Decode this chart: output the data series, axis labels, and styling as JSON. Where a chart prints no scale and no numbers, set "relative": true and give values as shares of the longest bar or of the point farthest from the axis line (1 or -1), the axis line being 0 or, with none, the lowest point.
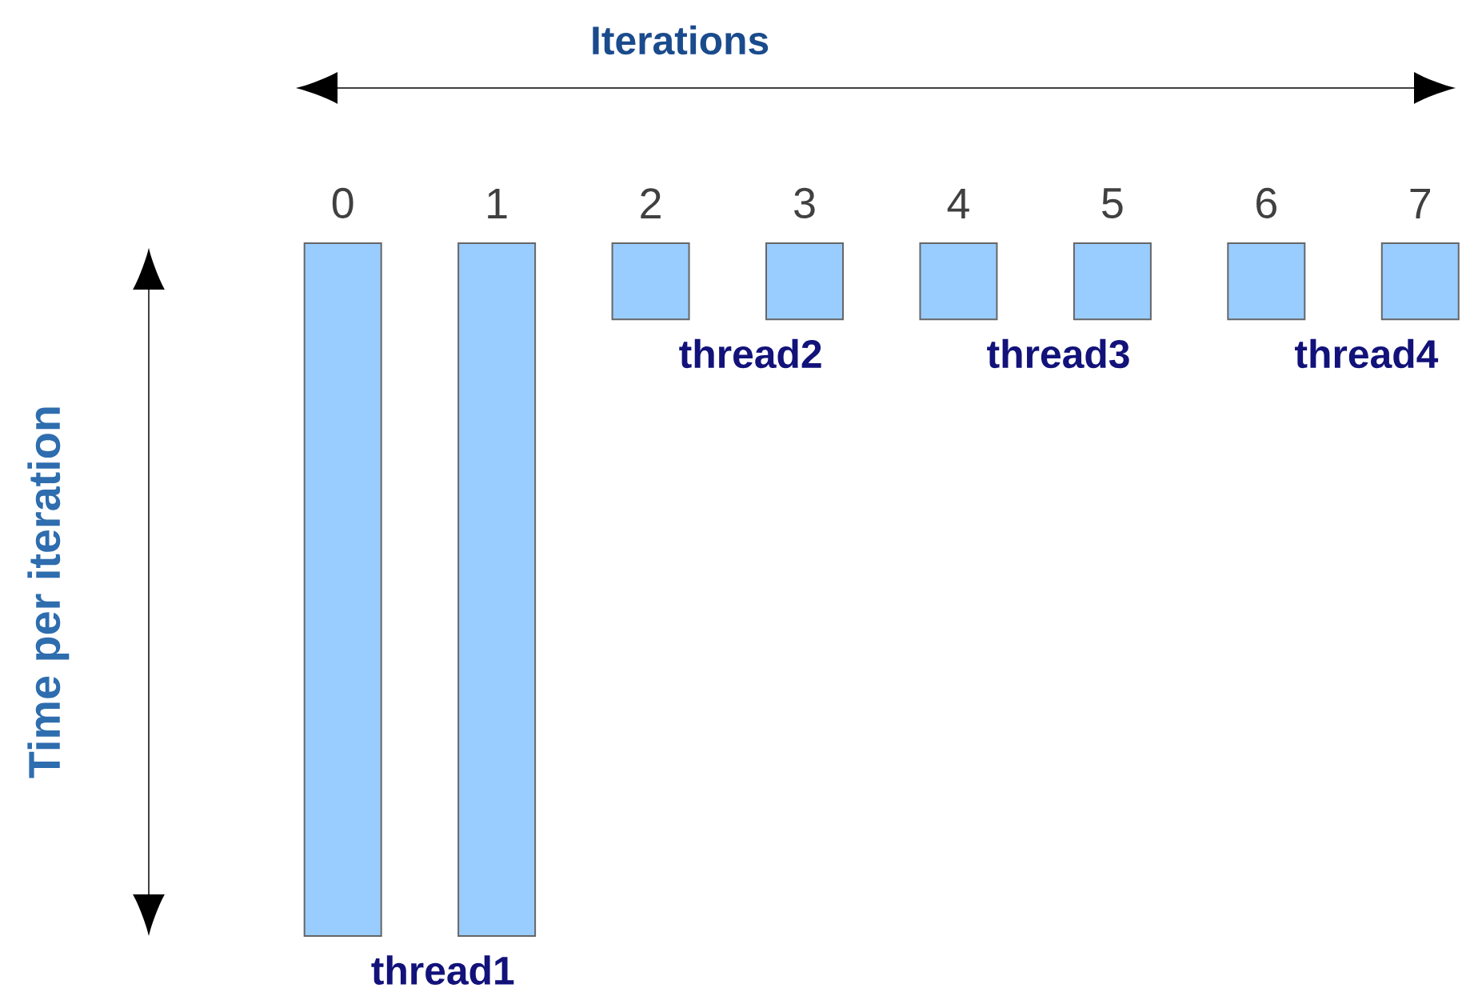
{
  "chart_data": {
    "type": "bar",
    "xlabel": "Iterations",
    "ylabel": "Time per iteration",
    "categories": [
      "0",
      "1",
      "2",
      "3",
      "4",
      "5",
      "6",
      "7"
    ],
    "values": [
      -1,
      -1,
      -0.11,
      -0.11,
      -0.11,
      -0.11,
      -0.11,
      -0.11
    ],
    "color": "#99ccff",
    "relative": true,
    "annotations": [
      "thread1",
      "thread2",
      "thread3",
      "thread4"
    ]
  }
}
